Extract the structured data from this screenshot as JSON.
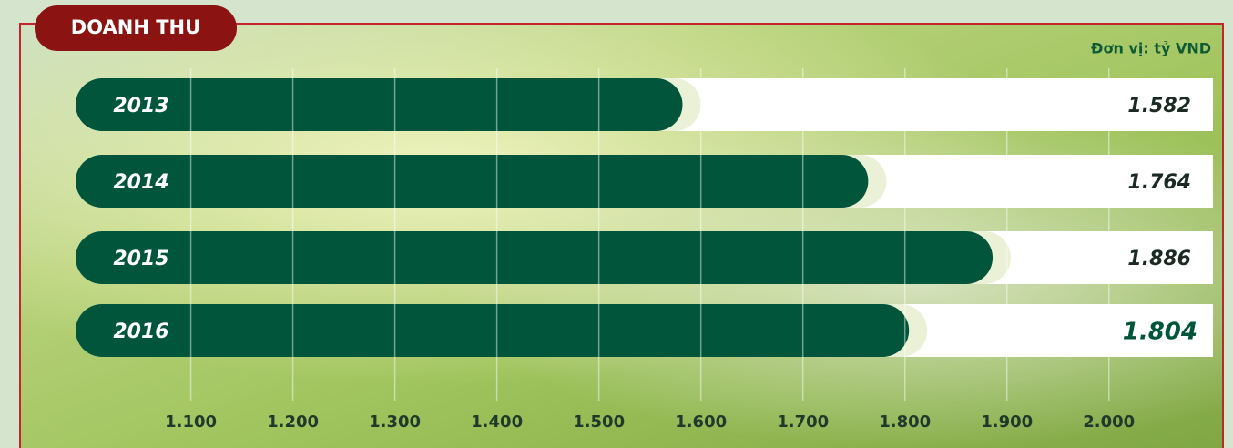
{
  "chart_data": {
    "type": "bar",
    "orientation": "horizontal",
    "title": "DOANH THU",
    "unit_label": "Đơn vị: tỷ VND",
    "categories": [
      "2013",
      "2014",
      "2015",
      "2016"
    ],
    "values": [
      1582,
      1764,
      1886,
      1804
    ],
    "value_labels": [
      "1.582",
      "1.764",
      "1.886",
      "1.804"
    ],
    "color": "#00553a",
    "xlim": [
      987,
      2102
    ],
    "xticks": [
      {
        "value": 1100,
        "label": "1.100"
      },
      {
        "value": 1200,
        "label": "1.200"
      },
      {
        "value": 1300,
        "label": "1.300"
      },
      {
        "value": 1400,
        "label": "1.400"
      },
      {
        "value": 1500,
        "label": "1.500"
      },
      {
        "value": 1600,
        "label": "1.600"
      },
      {
        "value": 1700,
        "label": "1.700"
      },
      {
        "value": 1800,
        "label": "1.800"
      },
      {
        "value": 1900,
        "label": "1.900"
      },
      {
        "value": 2000,
        "label": "2.000"
      }
    ],
    "grid": true
  }
}
